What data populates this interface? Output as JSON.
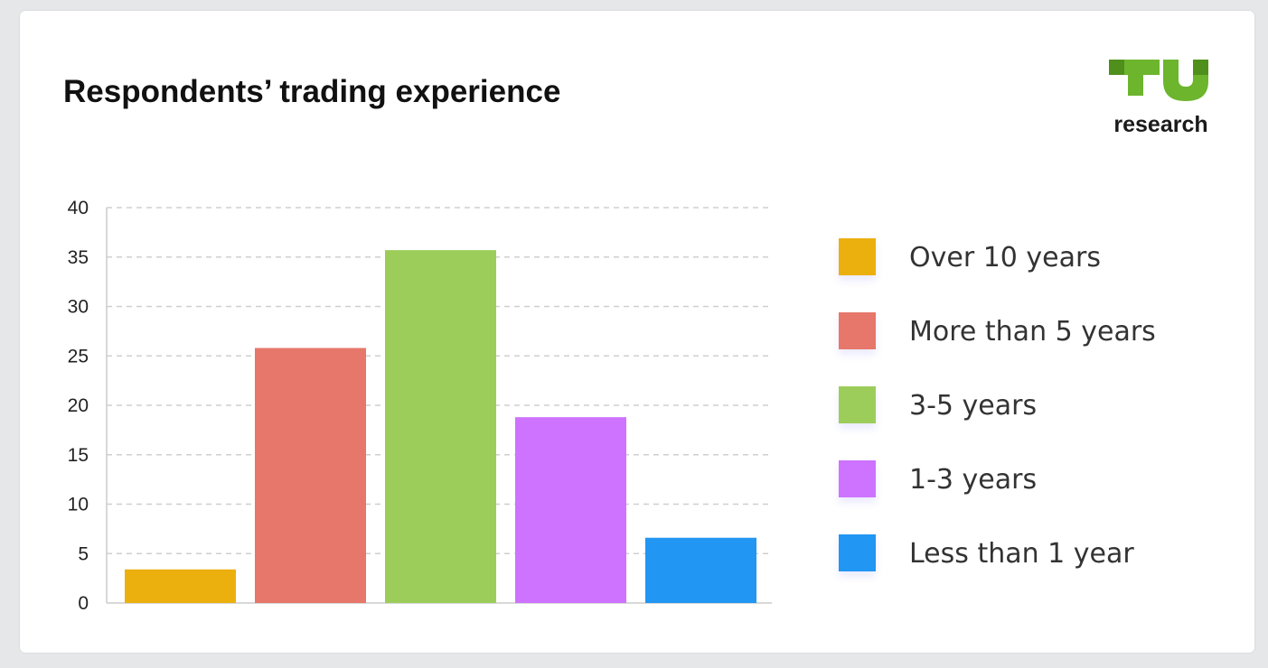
{
  "header": {
    "title": "Respondents’ trading experience"
  },
  "logo": {
    "mark": "TU",
    "text": "research",
    "color": "#6cb52d"
  },
  "chart_data": {
    "type": "bar",
    "title": "Respondents’ trading experience",
    "xlabel": "",
    "ylabel": "",
    "ylim": [
      0,
      40
    ],
    "yticks": [
      0,
      5,
      10,
      15,
      20,
      25,
      30,
      35,
      40
    ],
    "grid": true,
    "legend_position": "right",
    "categories": [
      "Over 10 years",
      "More than 5 years",
      "3-5 years",
      "1-3 years",
      "Less than 1 year"
    ],
    "values": [
      3.4,
      25.8,
      35.7,
      18.8,
      6.6
    ],
    "colors": [
      "#ecb00e",
      "#e6776a",
      "#9ccd5a",
      "#cd73ff",
      "#2196f3"
    ]
  }
}
